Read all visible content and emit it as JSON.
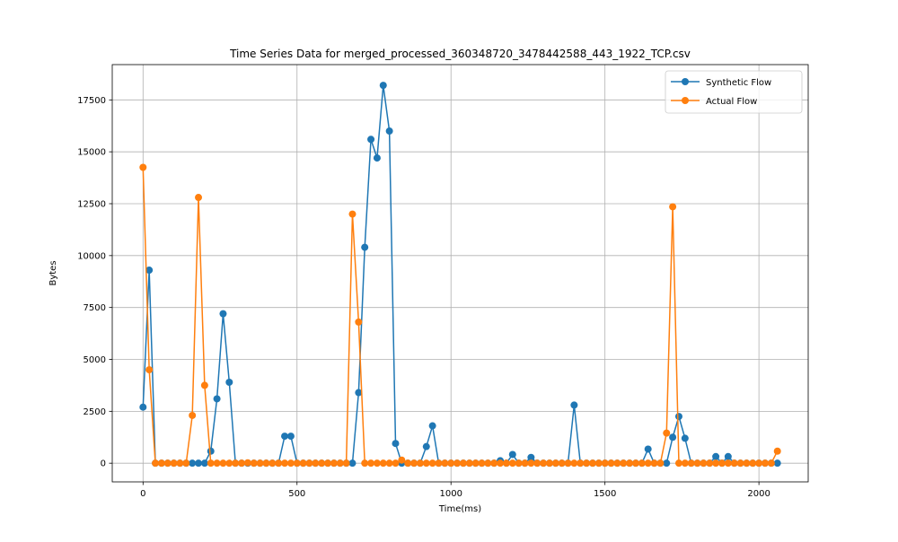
{
  "chart_data": {
    "type": "line",
    "title": "Time Series Data for merged_processed_360348720_3478442588_443_1922_TCP.csv",
    "xlabel": "Time(ms)",
    "ylabel": "Bytes",
    "xlim": [
      -100,
      2160
    ],
    "ylim": [
      -900,
      19200
    ],
    "xticks": [
      0,
      500,
      1000,
      1500,
      2000
    ],
    "xtick_labels": [
      "0",
      "500",
      "1000",
      "1500",
      "2000"
    ],
    "yticks": [
      0,
      2500,
      5000,
      7500,
      10000,
      12500,
      15000,
      17500
    ],
    "ytick_labels": [
      "0",
      "2500",
      "5000",
      "7500",
      "10000",
      "12500",
      "15000",
      "17500"
    ],
    "grid": true,
    "legend_position": "top-right",
    "series": [
      {
        "name": "Synthetic Flow",
        "color": "#1f77b4",
        "marker": "circle",
        "x": [
          0,
          20,
          40,
          60,
          80,
          100,
          120,
          140,
          160,
          180,
          200,
          220,
          240,
          260,
          280,
          300,
          320,
          340,
          360,
          380,
          400,
          420,
          440,
          460,
          480,
          500,
          520,
          540,
          560,
          580,
          600,
          620,
          640,
          660,
          680,
          700,
          720,
          740,
          760,
          780,
          800,
          820,
          840,
          860,
          880,
          900,
          920,
          940,
          960,
          980,
          1000,
          1020,
          1040,
          1060,
          1080,
          1100,
          1120,
          1140,
          1160,
          1180,
          1200,
          1220,
          1240,
          1260,
          1280,
          1300,
          1320,
          1340,
          1360,
          1380,
          1400,
          1420,
          1440,
          1460,
          1480,
          1500,
          1520,
          1540,
          1560,
          1580,
          1600,
          1620,
          1640,
          1660,
          1680,
          1700,
          1720,
          1740,
          1760,
          1780,
          1800,
          1820,
          1840,
          1860,
          1880,
          1900,
          1920,
          1940,
          1960,
          1980,
          2000,
          2020,
          2040,
          2060
        ],
        "y": [
          2700,
          9300,
          0,
          0,
          0,
          0,
          0,
          0,
          0,
          0,
          0,
          580,
          3100,
          7200,
          3900,
          0,
          0,
          0,
          0,
          0,
          0,
          0,
          0,
          1300,
          1300,
          0,
          0,
          0,
          0,
          0,
          0,
          0,
          0,
          0,
          0,
          3400,
          10400,
          15600,
          14700,
          18200,
          16000,
          950,
          0,
          0,
          0,
          0,
          800,
          1800,
          0,
          0,
          0,
          0,
          0,
          0,
          0,
          0,
          0,
          0,
          120,
          0,
          420,
          0,
          0,
          280,
          0,
          0,
          0,
          0,
          0,
          0,
          2800,
          0,
          0,
          0,
          0,
          0,
          0,
          0,
          0,
          0,
          0,
          0,
          680,
          0,
          0,
          0,
          1250,
          2250,
          1200,
          0,
          0,
          0,
          0,
          320,
          0,
          320,
          0,
          0,
          0,
          0,
          0,
          0,
          0,
          0
        ]
      },
      {
        "name": "Actual Flow",
        "color": "#ff7f0e",
        "marker": "circle",
        "x": [
          0,
          20,
          40,
          60,
          80,
          100,
          120,
          140,
          160,
          180,
          200,
          220,
          240,
          260,
          280,
          300,
          320,
          340,
          360,
          380,
          400,
          420,
          440,
          460,
          480,
          500,
          520,
          540,
          560,
          580,
          600,
          620,
          640,
          660,
          680,
          700,
          720,
          740,
          760,
          780,
          800,
          820,
          840,
          860,
          880,
          900,
          920,
          940,
          960,
          980,
          1000,
          1020,
          1040,
          1060,
          1080,
          1100,
          1120,
          1140,
          1160,
          1180,
          1200,
          1220,
          1240,
          1260,
          1280,
          1300,
          1320,
          1340,
          1360,
          1380,
          1400,
          1420,
          1440,
          1460,
          1480,
          1500,
          1520,
          1540,
          1560,
          1580,
          1600,
          1620,
          1640,
          1660,
          1680,
          1700,
          1720,
          1740,
          1760,
          1780,
          1800,
          1820,
          1840,
          1860,
          1880,
          1900,
          1920,
          1940,
          1960,
          1980,
          2000,
          2020,
          2040,
          2060
        ],
        "y": [
          14250,
          4500,
          0,
          0,
          0,
          0,
          0,
          0,
          2300,
          12800,
          3750,
          0,
          0,
          0,
          0,
          0,
          0,
          20,
          0,
          0,
          0,
          0,
          0,
          0,
          0,
          0,
          0,
          0,
          0,
          0,
          0,
          0,
          0,
          0,
          12000,
          6800,
          0,
          0,
          0,
          0,
          0,
          0,
          150,
          0,
          0,
          0,
          0,
          0,
          0,
          0,
          0,
          0,
          0,
          0,
          0,
          0,
          0,
          0,
          0,
          0,
          0,
          0,
          0,
          0,
          0,
          0,
          0,
          0,
          0,
          0,
          0,
          0,
          0,
          0,
          0,
          0,
          0,
          0,
          0,
          0,
          0,
          0,
          0,
          0,
          0,
          1450,
          12350,
          0,
          0,
          0,
          0,
          0,
          0,
          0,
          0,
          0,
          0,
          0,
          0,
          0,
          0,
          0,
          0,
          580
        ]
      }
    ]
  }
}
